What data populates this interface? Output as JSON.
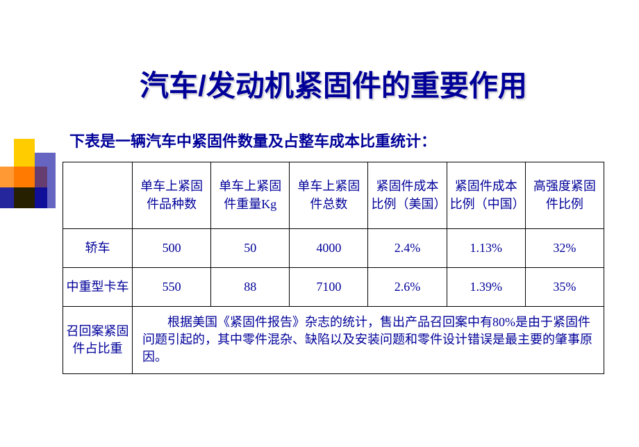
{
  "title": "汽车/发动机紧固件的重要作用",
  "subtitle": "下表是一辆汽车中紧固件数量及占整车成本比重统计：",
  "colors": {
    "text": "#000099",
    "border": "#000000",
    "background": "#ffffff",
    "deco_orange": "#ff9933",
    "deco_yellow": "#ffcc00",
    "deco_blue": "#000099",
    "deco_navy": "#00008b"
  },
  "typography": {
    "title_fontsize": 42,
    "subtitle_fontsize": 22,
    "cell_fontsize": 18
  },
  "table": {
    "columns": [
      "",
      "单车上紧固件品种数",
      "单车上紧固件重量Kg",
      "单车上紧固件总数",
      "紧固件成本比例（美国）",
      "紧固件成本比例（中国）",
      "高强度紧固件比例"
    ],
    "rows": [
      {
        "label": "轿车",
        "cells": [
          "500",
          "50",
          "4000",
          "2.4%",
          "1.13%",
          "32%"
        ]
      },
      {
        "label": "中重型卡车",
        "cells": [
          "550",
          "88",
          "7100",
          "2.6%",
          "1.39%",
          "35%"
        ]
      }
    ],
    "note": {
      "label": "召回案紧固件占比重",
      "text": "　　根据美国《紧固件报告》杂志的统计，售出产品召回案中有80%是由于紧固件问题引起的，其中零件混杂、缺陷以及安装问题和零件设计错误是最主要的肇事原因。"
    }
  }
}
